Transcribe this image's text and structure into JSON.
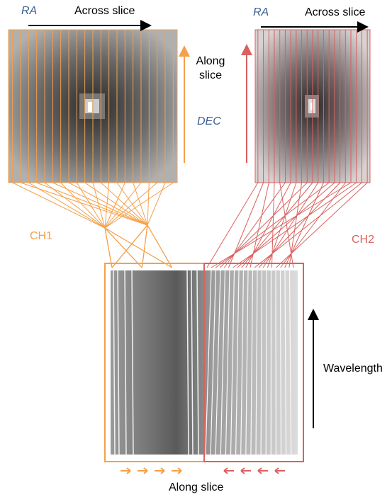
{
  "left_panel": {
    "ra_label": "RA",
    "across_label": "Across slice",
    "along_label": "Along slice",
    "dec_label": "DEC"
  },
  "right_panel": {
    "ra_label": "RA",
    "across_label": "Across slice"
  },
  "channels": {
    "ch1": "CH1",
    "ch2": "CH2"
  },
  "detector": {
    "wavelength_label": "Wavelength",
    "along_label": "Along slice"
  }
}
